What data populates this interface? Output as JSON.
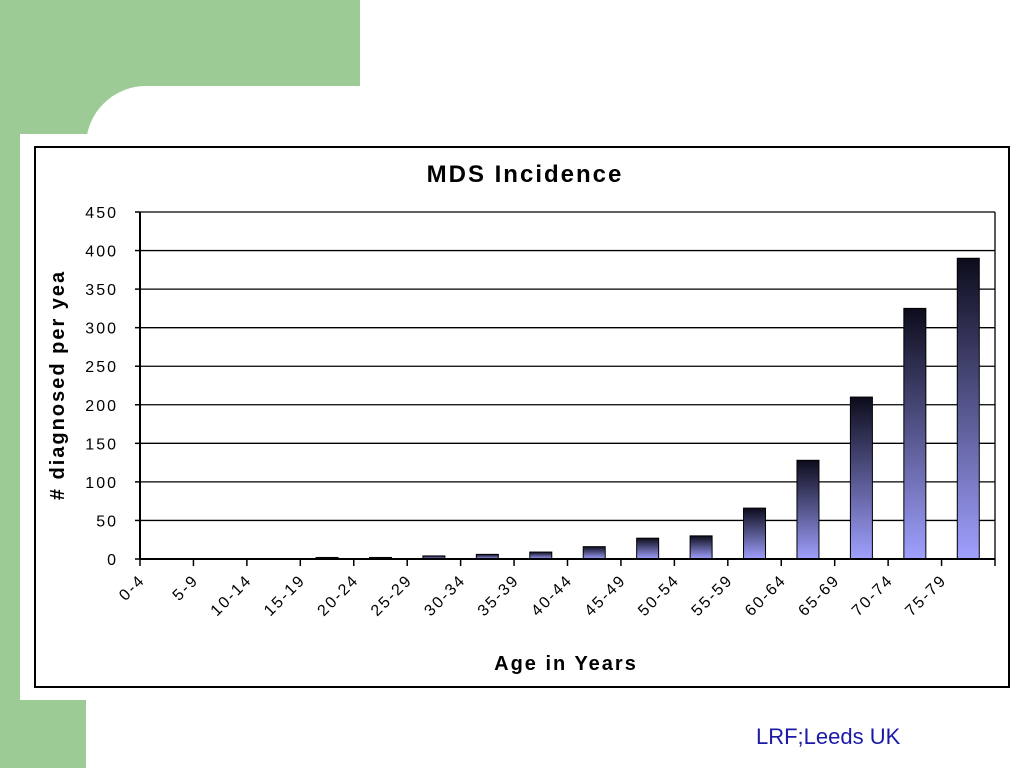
{
  "colors": {
    "accent_green": "#9dcb96",
    "bar_top": "#0c0c1c",
    "bar_bottom": "#a0a0ff",
    "footer_text": "#1a1aa6"
  },
  "footer": {
    "credit": "LRF;Leeds UK"
  },
  "chart_data": {
    "type": "bar",
    "title": "MDS Incidence",
    "xlabel": "Age in Years",
    "ylabel": "# diagnosed per yea",
    "ylim": [
      0,
      450
    ],
    "yticks": [
      0,
      50,
      100,
      150,
      200,
      250,
      300,
      350,
      400,
      450
    ],
    "grid": true,
    "categories": [
      "0-4",
      "5-9",
      "10-14",
      "15-19",
      "20-24",
      "25-29",
      "30-34",
      "35-39",
      "40-44",
      "45-49",
      "50-54",
      "55-59",
      "60-64",
      "65-69",
      "70-74",
      "75-79"
    ],
    "values": [
      0,
      0,
      0,
      2,
      2,
      4,
      6,
      9,
      16,
      27,
      30,
      66,
      128,
      210,
      325,
      390
    ]
  }
}
